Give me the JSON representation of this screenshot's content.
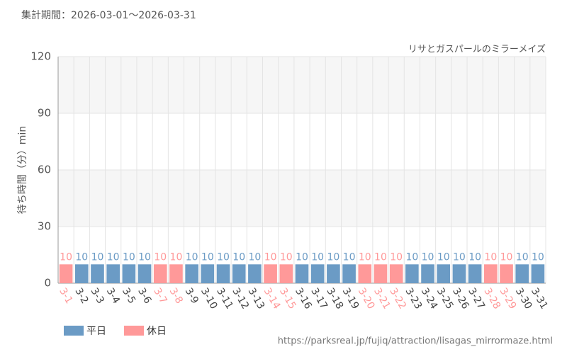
{
  "chart_data": {
    "type": "bar",
    "subtitle": "集計期間：2026-03-01～2026-03-31",
    "title": "リサとガスパールのミラーメイズ",
    "y_label": "待ち時間（分）min",
    "source": "https://parksreal.jp/fujiq/attraction/lisagas_mirrormaze.html",
    "categories": [
      "3-1",
      "3-2",
      "3-3",
      "3-4",
      "3-5",
      "3-6",
      "3-7",
      "3-8",
      "3-9",
      "3-10",
      "3-11",
      "3-12",
      "3-13",
      "3-14",
      "3-15",
      "3-16",
      "3-17",
      "3-18",
      "3-19",
      "3-20",
      "3-21",
      "3-22",
      "3-23",
      "3-24",
      "3-25",
      "3-26",
      "3-27",
      "3-28",
      "3-29",
      "3-30",
      "3-31"
    ],
    "series": [
      {
        "name": "平日",
        "color": "#6b9bc5",
        "values": [
          null,
          10,
          10,
          10,
          10,
          10,
          null,
          null,
          10,
          10,
          10,
          10,
          10,
          null,
          null,
          10,
          10,
          10,
          10,
          null,
          null,
          null,
          10,
          10,
          10,
          10,
          10,
          null,
          null,
          10,
          10
        ]
      },
      {
        "name": "休日",
        "color": "#ff9999",
        "values": [
          10,
          null,
          null,
          null,
          null,
          null,
          10,
          10,
          null,
          null,
          null,
          null,
          null,
          10,
          10,
          null,
          null,
          null,
          null,
          10,
          10,
          10,
          null,
          null,
          null,
          null,
          null,
          10,
          10,
          null,
          null
        ]
      }
    ],
    "ylim": [
      0,
      120
    ],
    "yticks": [
      0,
      30,
      60,
      90,
      120
    ],
    "grid": true,
    "legend": "bottom-left"
  }
}
